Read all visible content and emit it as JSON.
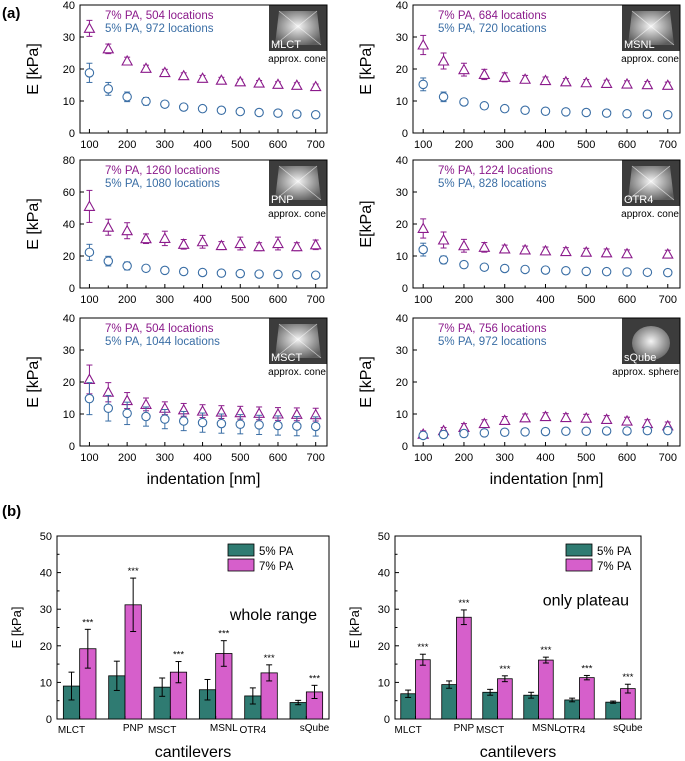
{
  "figure_labels": {
    "a": "(a)",
    "b": "(b)"
  },
  "colors": {
    "pa7": "#8B1A8B",
    "pa5": "#3A6EA5",
    "bar5": "#2F7B72",
    "bar7": "#D65FCB",
    "axis": "#000000"
  },
  "chart_data": [
    {
      "id": "mlct",
      "type": "scatter",
      "x": [
        100,
        150,
        200,
        250,
        300,
        350,
        400,
        450,
        500,
        550,
        600,
        650,
        700
      ],
      "series": [
        {
          "name": "7% PA",
          "values": [
            32.7,
            26.3,
            22.5,
            20.2,
            18.9,
            17.9,
            17.1,
            16.5,
            16.0,
            15.6,
            15.2,
            14.9,
            14.5
          ],
          "errors": [
            2.5,
            1.5,
            1.2,
            1.0,
            1.0,
            0.9,
            0.9,
            0.9,
            0.8,
            0.8,
            0.8,
            0.8,
            0.8
          ]
        },
        {
          "name": "5% PA",
          "values": [
            18.8,
            13.8,
            11.3,
            9.9,
            9.0,
            8.1,
            7.6,
            7.1,
            6.7,
            6.4,
            6.2,
            5.9,
            5.7
          ],
          "errors": [
            3.0,
            2.0,
            1.5,
            1.2,
            1.0,
            0.9,
            0.9,
            0.8,
            0.8,
            0.8,
            0.8,
            0.8,
            0.8
          ]
        }
      ],
      "legend": {
        "pa7": "7% PA, 504 locations",
        "pa5": "5% PA, 972 locations"
      },
      "inset_label": "MLCT",
      "shape_note": "approx. cone",
      "ylabel": "E [kPa]",
      "xlabel": "",
      "ylim": [
        0,
        40
      ],
      "xlim": [
        75,
        730
      ],
      "yticks": [
        "0",
        "10",
        "20",
        "30",
        "40"
      ],
      "xticks": [
        "100",
        "200",
        "300",
        "400",
        "500",
        "600",
        "700"
      ]
    },
    {
      "id": "msnl",
      "type": "scatter",
      "x": [
        100,
        150,
        200,
        250,
        300,
        350,
        400,
        450,
        500,
        550,
        600,
        650,
        700
      ],
      "series": [
        {
          "name": "7% PA",
          "values": [
            27.5,
            22.5,
            19.8,
            18.3,
            17.4,
            16.8,
            16.4,
            16.0,
            15.7,
            15.5,
            15.3,
            15.1,
            14.9
          ],
          "errors": [
            3.0,
            2.5,
            2.0,
            1.6,
            1.4,
            1.2,
            1.1,
            1.0,
            1.0,
            1.0,
            1.0,
            1.0,
            1.0
          ]
        },
        {
          "name": "5% PA",
          "values": [
            15.2,
            11.3,
            9.7,
            8.5,
            7.6,
            7.1,
            6.8,
            6.6,
            6.4,
            6.2,
            6.0,
            5.9,
            5.7
          ],
          "errors": [
            2.0,
            1.5,
            1.0,
            0.8,
            0.7,
            0.6,
            0.6,
            0.6,
            0.6,
            0.6,
            0.6,
            0.6,
            0.6
          ]
        }
      ],
      "legend": {
        "pa7": "7% PA, 684 locations",
        "pa5": "5% PA, 720 locations"
      },
      "inset_label": "MSNL",
      "shape_note": "approx. cone",
      "ylabel": "E [kPa]",
      "xlabel": "",
      "ylim": [
        0,
        40
      ],
      "xlim": [
        75,
        730
      ],
      "yticks": [
        "0",
        "10",
        "20",
        "30",
        "40"
      ],
      "xticks": [
        "100",
        "200",
        "300",
        "400",
        "500",
        "600",
        "700"
      ]
    },
    {
      "id": "pnp",
      "type": "scatter",
      "x": [
        100,
        150,
        200,
        250,
        300,
        350,
        400,
        450,
        500,
        550,
        600,
        650,
        700
      ],
      "series": [
        {
          "name": "7% PA",
          "values": [
            51.0,
            38.0,
            35.8,
            30.8,
            31.0,
            27.3,
            28.9,
            26.5,
            27.8,
            25.8,
            27.8,
            25.8,
            27.0
          ],
          "errors": [
            10.0,
            5.0,
            5.0,
            3.0,
            4.5,
            3.0,
            4.0,
            2.5,
            4.0,
            2.5,
            4.0,
            2.5,
            3.0
          ]
        },
        {
          "name": "5% PA",
          "values": [
            22.3,
            16.8,
            13.8,
            12.3,
            11.0,
            10.3,
            9.7,
            9.3,
            9.0,
            8.7,
            8.5,
            8.3,
            8.0
          ],
          "errors": [
            5.0,
            3.0,
            2.5,
            2.0,
            1.5,
            1.5,
            1.2,
            1.2,
            1.0,
            1.0,
            1.0,
            1.0,
            1.0
          ]
        }
      ],
      "legend": {
        "pa7": "7% PA, 1260 locations",
        "pa5": "5% PA, 1080 locations"
      },
      "inset_label": "PNP",
      "shape_note": "approx. cone",
      "ylabel": "E [kPa]",
      "xlabel": "",
      "ylim": [
        0,
        80
      ],
      "xlim": [
        75,
        730
      ],
      "yticks": [
        "0",
        "20",
        "40",
        "60",
        "80"
      ],
      "xticks": [
        "100",
        "200",
        "300",
        "400",
        "500",
        "600",
        "700"
      ]
    },
    {
      "id": "otr4",
      "type": "scatter",
      "x": [
        100,
        150,
        200,
        250,
        300,
        350,
        400,
        450,
        500,
        550,
        600,
        650,
        700
      ],
      "series": [
        {
          "name": "7% PA",
          "values": [
            18.6,
            15.0,
            13.2,
            12.7,
            12.2,
            11.9,
            11.6,
            11.4,
            11.2,
            11.0,
            10.7,
            null,
            10.6
          ],
          "errors": [
            3.0,
            2.5,
            2.0,
            1.5,
            1.2,
            1.2,
            1.2,
            1.2,
            1.2,
            1.2,
            1.2,
            null,
            1.2
          ]
        },
        {
          "name": "5% PA",
          "values": [
            12.0,
            8.8,
            7.3,
            6.5,
            6.1,
            5.8,
            5.6,
            5.4,
            5.2,
            5.1,
            5.0,
            4.9,
            4.8
          ],
          "errors": [
            2.0,
            1.2,
            1.0,
            0.9,
            0.8,
            0.8,
            0.8,
            0.8,
            0.8,
            0.8,
            0.8,
            0.8,
            0.8
          ]
        }
      ],
      "legend": {
        "pa7": "7% PA, 1224 locations",
        "pa5": "5% PA,   828 locations"
      },
      "inset_label": "OTR4",
      "shape_note": "approx. cone",
      "ylabel": "E[kPa]",
      "xlabel": "",
      "ylim": [
        0,
        40
      ],
      "xlim": [
        75,
        730
      ],
      "yticks": [
        "0",
        "10",
        "20",
        "30",
        "40"
      ],
      "xticks": [
        "100",
        "200",
        "300",
        "400",
        "500",
        "600",
        "700"
      ]
    },
    {
      "id": "msct",
      "type": "scatter",
      "x": [
        100,
        150,
        200,
        250,
        300,
        350,
        400,
        450,
        500,
        550,
        600,
        650,
        700
      ],
      "series": [
        {
          "name": "7% PA",
          "values": [
            20.8,
            16.8,
            14.2,
            13.0,
            11.8,
            11.3,
            10.9,
            10.6,
            10.4,
            10.2,
            10.0,
            9.9,
            9.8
          ],
          "errors": [
            4.5,
            3.0,
            2.5,
            2.0,
            2.0,
            2.0,
            2.0,
            2.0,
            2.0,
            2.0,
            2.0,
            2.0,
            2.0
          ]
        },
        {
          "name": "5% PA",
          "values": [
            14.8,
            11.8,
            10.2,
            9.2,
            8.4,
            7.8,
            7.3,
            7.0,
            6.8,
            6.6,
            6.4,
            6.2,
            6.1
          ],
          "errors": [
            5.0,
            4.0,
            3.5,
            3.0,
            3.0,
            3.0,
            3.0,
            3.0,
            3.0,
            3.0,
            3.0,
            3.0,
            3.0
          ]
        }
      ],
      "legend": {
        "pa7": "7% PA,   504 locations",
        "pa5": "5% PA, 1044 locations"
      },
      "inset_label": "MSCT",
      "shape_note": "approx. cone",
      "ylabel": "E [kPa]",
      "xlabel": "indentation [nm]",
      "ylim": [
        0,
        40
      ],
      "xlim": [
        75,
        730
      ],
      "yticks": [
        "0",
        "10",
        "20",
        "30",
        "40"
      ],
      "xticks": [
        "100",
        "200",
        "300",
        "400",
        "500",
        "600",
        "700"
      ]
    },
    {
      "id": "sqube",
      "type": "scatter",
      "x": [
        100,
        150,
        200,
        250,
        300,
        350,
        400,
        450,
        500,
        550,
        600,
        650,
        700
      ],
      "series": [
        {
          "name": "7% PA",
          "values": [
            3.7,
            4.8,
            5.8,
            7.0,
            8.0,
            8.8,
            9.2,
            8.9,
            8.7,
            8.3,
            7.8,
            7.0,
            6.3
          ],
          "errors": [
            1.0,
            1.0,
            1.2,
            1.2,
            1.2,
            1.2,
            1.2,
            1.2,
            1.2,
            1.2,
            1.2,
            1.2,
            1.2
          ]
        },
        {
          "name": "5% PA",
          "values": [
            3.3,
            3.6,
            3.9,
            4.1,
            4.3,
            4.4,
            4.5,
            4.6,
            4.6,
            4.7,
            4.7,
            4.8,
            4.8
          ],
          "errors": [
            1.0,
            1.0,
            1.0,
            1.0,
            1.0,
            1.0,
            1.0,
            1.0,
            1.0,
            1.0,
            1.0,
            1.0,
            1.0
          ]
        }
      ],
      "legend": {
        "pa7": "7% PA, 756 locations",
        "pa5": "5% PA, 972 locations"
      },
      "inset_label": "sQube",
      "shape_note": "approx. sphere",
      "ylabel": "E [kPa]",
      "xlabel": "indentation [nm]",
      "ylim": [
        0,
        40
      ],
      "xlim": [
        75,
        730
      ],
      "yticks": [
        "0",
        "10",
        "20",
        "30",
        "40"
      ],
      "xticks": [
        "100",
        "200",
        "300",
        "400",
        "500",
        "600",
        "700"
      ]
    },
    {
      "id": "whole",
      "type": "bar",
      "categories": [
        "MLCT",
        "PNP",
        "MSCT",
        "MSNL",
        "OTR4",
        "sQube"
      ],
      "series": [
        {
          "name": "5% PA",
          "values": [
            9.0,
            11.8,
            8.7,
            8.0,
            6.3,
            4.5
          ],
          "errors": [
            3.8,
            4.0,
            2.5,
            2.8,
            2.2,
            0.6
          ]
        },
        {
          "name": "7% PA",
          "values": [
            19.2,
            31.2,
            12.8,
            17.9,
            12.6,
            7.4
          ],
          "errors": [
            5.3,
            7.3,
            2.9,
            3.5,
            2.2,
            1.8
          ]
        }
      ],
      "significance": [
        "***",
        "***",
        "***",
        "***",
        "***",
        "***"
      ],
      "annotation": "whole range",
      "ylabel": "E [kPa]",
      "xlabel": "cantilevers",
      "ylim": [
        0,
        50
      ],
      "yticks": [
        "0",
        "10",
        "20",
        "30",
        "40",
        "50"
      ]
    },
    {
      "id": "plateau",
      "type": "bar",
      "categories": [
        "MLCT",
        "PNP",
        "MSCT",
        "MSNL",
        "OTR4",
        "sQube"
      ],
      "series": [
        {
          "name": "5% PA",
          "values": [
            6.9,
            9.4,
            7.3,
            6.5,
            5.2,
            4.6
          ],
          "errors": [
            1.0,
            1.0,
            0.8,
            0.8,
            0.5,
            0.3
          ]
        },
        {
          "name": "7% PA",
          "values": [
            16.2,
            27.8,
            11.0,
            16.1,
            11.3,
            8.3
          ],
          "errors": [
            1.5,
            2.0,
            0.8,
            0.8,
            0.6,
            1.2
          ]
        }
      ],
      "significance": [
        "***",
        "***",
        "***",
        "***",
        "***",
        "***"
      ],
      "annotation": "only plateau",
      "ylabel": "E [kPa]",
      "xlabel": "cantilevers",
      "ylim": [
        0,
        50
      ],
      "yticks": [
        "0",
        "10",
        "20",
        "30",
        "40",
        "50"
      ]
    }
  ]
}
